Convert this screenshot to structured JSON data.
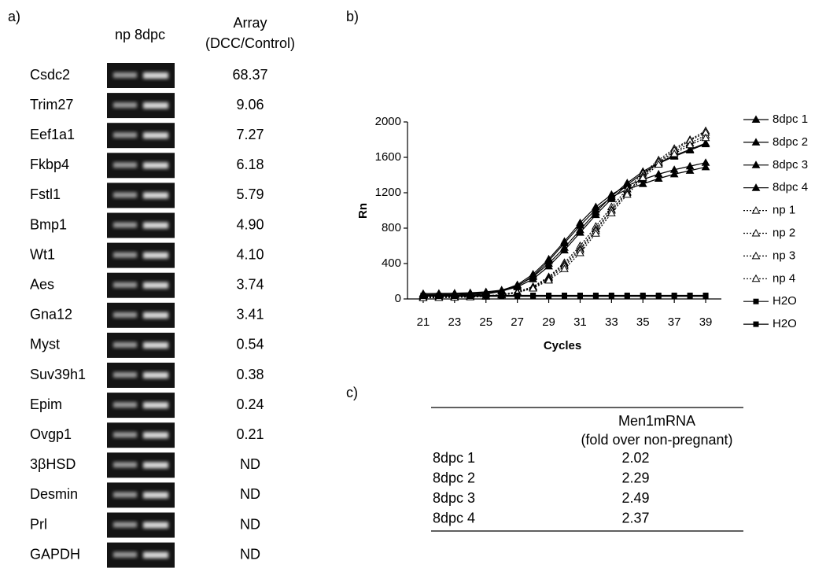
{
  "panel_a": {
    "label": "a)",
    "lanes_header": "np 8dpc",
    "value_header": [
      "Array",
      "(DCC/Control)"
    ],
    "rows": [
      [
        "Csdc2",
        "68.37"
      ],
      [
        "Trim27",
        "9.06"
      ],
      [
        "Eef1a1",
        "7.27"
      ],
      [
        "Fkbp4",
        "6.18"
      ],
      [
        "Fstl1",
        "5.79"
      ],
      [
        "Bmp1",
        "4.90"
      ],
      [
        "Wt1",
        "4.10"
      ],
      [
        "Aes",
        "3.74"
      ],
      [
        "Gna12",
        "3.41"
      ],
      [
        "Myst",
        "0.54"
      ],
      [
        "Suv39h1",
        "0.38"
      ],
      [
        "Epim",
        "0.24"
      ],
      [
        "Ovgp1",
        "0.21"
      ],
      [
        "3βHSD",
        "ND"
      ],
      [
        "Desmin",
        "ND"
      ],
      [
        "Prl",
        "ND"
      ],
      [
        "GAPDH",
        "ND"
      ]
    ]
  },
  "chart_data": {
    "type": "line",
    "label": "b)",
    "x_label": "Cycles",
    "y_label": "Rn",
    "x": [
      21,
      22,
      23,
      24,
      25,
      26,
      27,
      28,
      29,
      30,
      31,
      32,
      33,
      34,
      35,
      36,
      37,
      38,
      39
    ],
    "xlim": [
      20,
      40
    ],
    "xticks": [
      21,
      23,
      25,
      27,
      29,
      31,
      33,
      35,
      37,
      39
    ],
    "ylim": [
      0,
      2000
    ],
    "yticks": [
      0,
      400,
      800,
      1200,
      1600,
      2000
    ],
    "series": [
      {
        "name": "8dpc 1",
        "color": "#000000",
        "marker": "filled-triangle",
        "dotted": false,
        "values": [
          60,
          62,
          65,
          70,
          80,
          100,
          150,
          250,
          400,
          580,
          780,
          980,
          1160,
          1310,
          1440,
          1540,
          1620,
          1690,
          1760
        ]
      },
      {
        "name": "8dpc 2",
        "color": "#000000",
        "marker": "filled-triangle",
        "dotted": false,
        "values": [
          50,
          52,
          55,
          60,
          70,
          90,
          135,
          225,
          370,
          550,
          750,
          950,
          1130,
          1290,
          1420,
          1530,
          1610,
          1680,
          1750
        ]
      },
      {
        "name": "8dpc 3",
        "color": "#000000",
        "marker": "filled-triangle",
        "dotted": false,
        "values": [
          40,
          42,
          45,
          52,
          65,
          95,
          160,
          280,
          450,
          650,
          860,
          1040,
          1180,
          1280,
          1350,
          1410,
          1460,
          1500,
          1540
        ]
      },
      {
        "name": "8dpc 4",
        "color": "#000000",
        "marker": "filled-triangle",
        "dotted": false,
        "values": [
          30,
          32,
          35,
          42,
          55,
          85,
          145,
          260,
          430,
          630,
          830,
          1010,
          1150,
          1240,
          1300,
          1360,
          1410,
          1450,
          1490
        ]
      },
      {
        "name": "np 1",
        "color": "#000000",
        "marker": "open-triangle",
        "dotted": true,
        "values": [
          20,
          22,
          25,
          28,
          35,
          50,
          80,
          140,
          250,
          410,
          600,
          820,
          1040,
          1240,
          1420,
          1570,
          1700,
          1800,
          1900
        ]
      },
      {
        "name": "np 2",
        "color": "#000000",
        "marker": "open-triangle",
        "dotted": true,
        "values": [
          18,
          20,
          23,
          26,
          33,
          48,
          78,
          135,
          240,
          390,
          570,
          790,
          1010,
          1210,
          1390,
          1540,
          1660,
          1760,
          1850
        ]
      },
      {
        "name": "np 3",
        "color": "#000000",
        "marker": "open-triangle",
        "dotted": true,
        "values": [
          15,
          17,
          20,
          24,
          31,
          45,
          75,
          130,
          225,
          370,
          550,
          770,
          1000,
          1200,
          1390,
          1550,
          1680,
          1790,
          1880
        ]
      },
      {
        "name": "np 4",
        "color": "#000000",
        "marker": "open-triangle",
        "dotted": true,
        "values": [
          12,
          14,
          17,
          21,
          28,
          42,
          70,
          120,
          210,
          340,
          520,
          740,
          970,
          1180,
          1370,
          1520,
          1640,
          1740,
          1820
        ]
      },
      {
        "name": "H2O",
        "color": "#000000",
        "marker": "square",
        "dotted": false,
        "values": [
          40,
          40,
          40,
          40,
          40,
          40,
          40,
          40,
          40,
          40,
          40,
          40,
          40,
          40,
          40,
          40,
          40,
          40,
          40
        ]
      },
      {
        "name": "H2O",
        "color": "#000000",
        "marker": "square",
        "dotted": false,
        "values": [
          30,
          30,
          30,
          30,
          30,
          30,
          30,
          30,
          30,
          30,
          30,
          30,
          30,
          30,
          30,
          30,
          30,
          30,
          30
        ]
      }
    ]
  },
  "panel_c": {
    "label": "c)",
    "header": [
      "Men1mRNA",
      "(fold over non-pregnant)"
    ],
    "rows": [
      [
        "8dpc 1",
        "2.02"
      ],
      [
        "8dpc 2",
        "2.29"
      ],
      [
        "8dpc 3",
        "2.49"
      ],
      [
        "8dpc 4",
        "2.37"
      ]
    ]
  }
}
